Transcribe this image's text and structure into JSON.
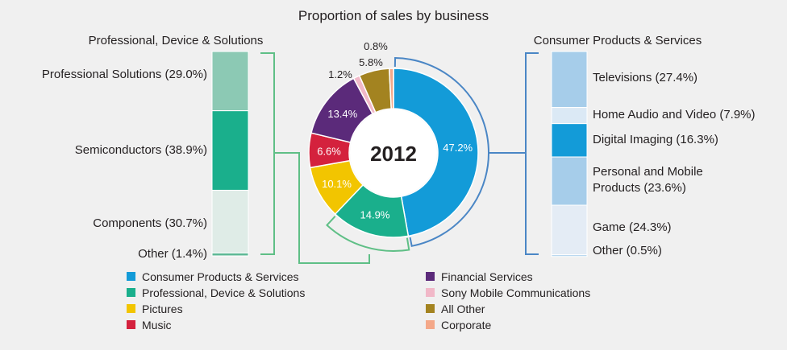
{
  "title": "Proportion of sales by business",
  "center_label": "2012",
  "left_panel": {
    "title": "Professional, Device & Solutions",
    "items": [
      {
        "label": "Professional Solutions (29.0%)",
        "value": 29.0,
        "color": "#8cc9b4"
      },
      {
        "label": "Semiconductors (38.9%)",
        "value": 38.9,
        "color": "#1aaf8c"
      },
      {
        "label": "Components (30.7%)",
        "value": 30.7,
        "color": "#dfece7"
      },
      {
        "label": "Other (1.4%)",
        "value": 1.4,
        "color": "#5db895"
      }
    ]
  },
  "right_panel": {
    "title": "Consumer Products & Services",
    "items": [
      {
        "label": "Televisions (27.4%)",
        "value": 27.4,
        "color": "#a6cdea"
      },
      {
        "label": "Home Audio and Video (7.9%)",
        "value": 7.9,
        "color": "#dbe9f5"
      },
      {
        "label": "Digital Imaging (16.3%)",
        "value": 16.3,
        "color": "#139bd8"
      },
      {
        "label": "Personal and Mobile Products (23.6%)",
        "value": 23.6,
        "color": "#a6cdea"
      },
      {
        "label": "Game (24.3%)",
        "value": 24.3,
        "color": "#e4ecf5"
      },
      {
        "label": "Other (0.5%)",
        "value": 0.5,
        "color": "#a6cdea"
      }
    ]
  },
  "chart_data": {
    "type": "pie",
    "title": "Proportion of sales by business",
    "center_label": "2012",
    "slices": [
      {
        "name": "Consumer Products & Services",
        "value": 47.2,
        "label": "47.2%",
        "color": "#139bd8"
      },
      {
        "name": "Professional, Device & Solutions",
        "value": 14.9,
        "label": "14.9%",
        "color": "#1aaf8c"
      },
      {
        "name": "Pictures",
        "value": 10.1,
        "label": "10.1%",
        "color": "#f2c500"
      },
      {
        "name": "Music",
        "value": 6.6,
        "label": "6.6%",
        "color": "#d4213d"
      },
      {
        "name": "Financial Services",
        "value": 13.4,
        "label": "13.4%",
        "color": "#5b2a7a"
      },
      {
        "name": "Sony Mobile Communications",
        "value": 1.2,
        "label": "1.2%",
        "color": "#f1b8c8"
      },
      {
        "name": "All Other",
        "value": 5.8,
        "label": "5.8%",
        "color": "#a38320"
      },
      {
        "name": "Corporate",
        "value": 0.8,
        "label": "0.8%",
        "color": "#f4a889"
      }
    ],
    "legend": [
      {
        "name": "Consumer Products & Services",
        "color": "#139bd8"
      },
      {
        "name": "Professional, Device & Solutions",
        "color": "#1aaf8c"
      },
      {
        "name": "Pictures",
        "color": "#f2c500"
      },
      {
        "name": "Music",
        "color": "#d4213d"
      },
      {
        "name": "Financial Services",
        "color": "#5b2a7a"
      },
      {
        "name": "Sony Mobile Communications",
        "color": "#f1b8c8"
      },
      {
        "name": "All Other",
        "color": "#a38320"
      },
      {
        "name": "Corporate",
        "color": "#f4a889"
      }
    ],
    "legend_placement": "bottom"
  },
  "colors": {
    "bracket_blue": "#4a86c5",
    "bracket_green": "#5fbf86"
  }
}
